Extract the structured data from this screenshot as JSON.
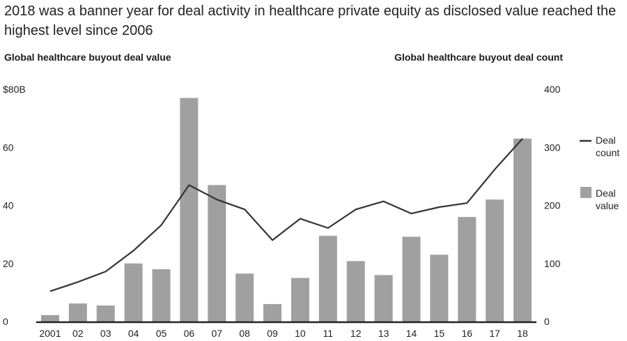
{
  "title": "2018 was a banner year for deal activity in healthcare private equity as disclosed value reached the highest level since 2006",
  "chart_data": {
    "type": "bar",
    "left_title": "Global healthcare buyout deal value",
    "right_title": "Global healthcare buyout deal count",
    "categories": [
      "2001",
      "02",
      "03",
      "04",
      "05",
      "06",
      "07",
      "08",
      "09",
      "10",
      "11",
      "12",
      "13",
      "14",
      "15",
      "16",
      "17",
      "18"
    ],
    "series": [
      {
        "name": "Deal value",
        "kind": "bar",
        "axis": "left",
        "color": "#a0a0a0",
        "values": [
          2.2,
          6.2,
          5.5,
          20,
          18,
          77,
          47,
          16.5,
          6,
          15,
          29.5,
          20.8,
          16,
          29.2,
          23,
          36,
          42,
          63
        ]
      },
      {
        "name": "Deal count",
        "kind": "line",
        "axis": "right",
        "color": "#333333",
        "values": [
          52,
          68,
          86,
          122,
          166,
          235,
          210,
          193,
          140,
          177,
          161,
          193,
          207,
          186,
          197,
          204,
          262,
          315
        ]
      }
    ],
    "left_axis": {
      "ylim": [
        0,
        80
      ],
      "ticks": [
        0,
        20,
        40,
        60,
        80
      ],
      "tick_labels": [
        "0",
        "20",
        "40",
        "60",
        "$80B"
      ]
    },
    "right_axis": {
      "ylim": [
        0,
        400
      ],
      "ticks": [
        0,
        100,
        200,
        300,
        400
      ],
      "tick_labels": [
        "0",
        "100",
        "200",
        "300",
        "400"
      ]
    },
    "legend": [
      {
        "label_line1": "Deal",
        "label_line2": "count",
        "kind": "line"
      },
      {
        "label_line1": "Deal",
        "label_line2": "value",
        "kind": "bar"
      }
    ],
    "legend_position": "right"
  }
}
